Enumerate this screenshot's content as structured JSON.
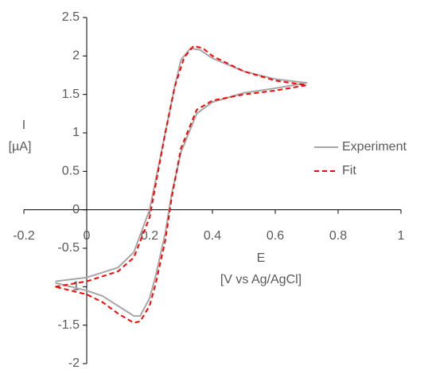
{
  "chart_data": {
    "type": "line",
    "x_label": "E",
    "x_label_unit": "[V vs Ag/AgCl]",
    "y_label": "I",
    "y_label_unit": "[µA]",
    "xlim": [
      -0.2,
      1
    ],
    "xticks": [
      -0.2,
      0,
      0.2,
      0.4,
      0.6,
      0.8,
      1
    ],
    "ylim": [
      -2,
      2.5
    ],
    "yticks": [
      -2,
      -1.5,
      -1,
      -0.5,
      0,
      0.5,
      1,
      1.5,
      2,
      2.5
    ],
    "grid": false,
    "legend": "right",
    "series": [
      {
        "name": "Experiment",
        "color": "#a6a6a6",
        "dash": "solid",
        "x": [
          -0.1,
          0,
          0.1,
          0.15,
          0.2,
          0.25,
          0.28,
          0.3,
          0.33,
          0.36,
          0.4,
          0.5,
          0.6,
          0.7,
          0.6,
          0.5,
          0.4,
          0.35,
          0.3,
          0.27,
          0.25,
          0.22,
          0.2,
          0.17,
          0.15,
          0.1,
          0.05,
          0,
          -0.1
        ],
        "values": [
          -0.93,
          -0.88,
          -0.75,
          -0.55,
          0,
          1,
          1.6,
          1.95,
          2.1,
          2.08,
          1.97,
          1.8,
          1.7,
          1.65,
          1.58,
          1.52,
          1.4,
          1.25,
          0.75,
          0.2,
          -0.3,
          -0.85,
          -1.15,
          -1.38,
          -1.38,
          -1.25,
          -1.12,
          -1.05,
          -0.95
        ]
      },
      {
        "name": "Fit",
        "color": "#ff0000",
        "dash": "dashed",
        "x": [
          -0.1,
          0,
          0.1,
          0.15,
          0.2,
          0.25,
          0.28,
          0.31,
          0.34,
          0.37,
          0.4,
          0.5,
          0.6,
          0.7,
          0.6,
          0.5,
          0.4,
          0.35,
          0.3,
          0.27,
          0.25,
          0.22,
          0.2,
          0.17,
          0.15,
          0.1,
          0.05,
          0,
          -0.1
        ],
        "values": [
          -1,
          -0.93,
          -0.8,
          -0.62,
          -0.1,
          1,
          1.6,
          1.98,
          2.13,
          2.1,
          2,
          1.8,
          1.68,
          1.62,
          1.55,
          1.5,
          1.42,
          1.3,
          0.8,
          0.15,
          -0.4,
          -0.95,
          -1.25,
          -1.45,
          -1.47,
          -1.35,
          -1.2,
          -1.1,
          -1
        ]
      }
    ]
  }
}
